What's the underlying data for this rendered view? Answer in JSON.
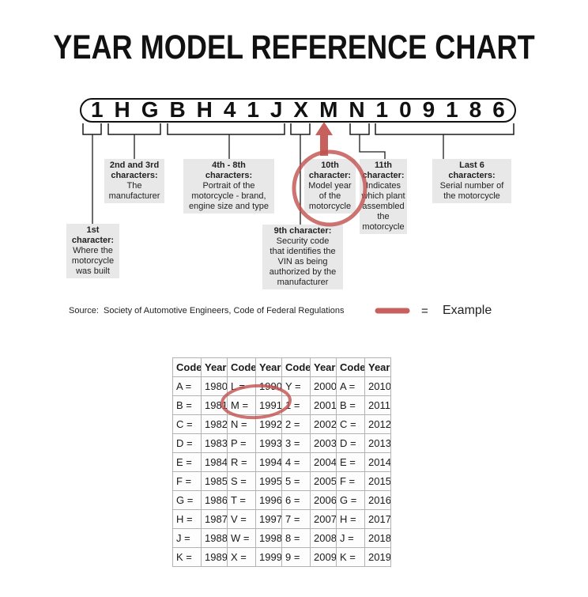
{
  "title": "YEAR MODEL REFERENCE CHART",
  "vin": {
    "characters": [
      "1",
      "H",
      "G",
      "B",
      "H",
      "4",
      "1",
      "J",
      "X",
      "M",
      "N",
      "1",
      "0",
      "9",
      "1",
      "8",
      "6"
    ]
  },
  "callouts": [
    {
      "id": "first",
      "head": "1st\ncharacter:",
      "body": "Where the\nmotorcycle\nwas built"
    },
    {
      "id": "second-third",
      "head": "2nd and 3rd\ncharacters:",
      "body": "The\nmanufacturer"
    },
    {
      "id": "fourth-eighth",
      "head": "4th - 8th\ncharacters:",
      "body": "Portrait of the\nmotorcycle - brand,\nengine size and type"
    },
    {
      "id": "ninth",
      "head": "9th character:",
      "body": "Security code\nthat identifies the\nVIN as being\nauthorized by the\nmanufacturer"
    },
    {
      "id": "tenth",
      "head": "10th\ncharacter:",
      "body": "Model year\nof the\nmotorcycle"
    },
    {
      "id": "eleventh",
      "head": "11th\ncharacter:",
      "body": "Indicates\nwhich plant\nassembled\nthe\nmotorcycle"
    },
    {
      "id": "last-six",
      "head": "Last 6\ncharacters:",
      "body": "Serial number of\nthe motorcycle"
    }
  ],
  "source_line": "Source:  Society of Automotive Engineers, Code of Federal Regulations",
  "legend": {
    "equals_sign": "=",
    "label": "Example"
  },
  "annotations": {
    "circled_vin_character": "M",
    "circled_callout": "10th character: Model year of the motorcycle",
    "circled_table_value": "M = 1991"
  },
  "colors": {
    "accent_red": "#c0504d",
    "label_bg": "#e8e8e8",
    "line_black": "#1c1c1c"
  },
  "table": {
    "headers": [
      "Code",
      "Year",
      "Code",
      "Year",
      "Code",
      "Year",
      "Code",
      "Year"
    ],
    "rows": [
      [
        "A =",
        "1980",
        "L =",
        "1990",
        "Y =",
        "2000",
        "A =",
        "2010"
      ],
      [
        "B =",
        "1981",
        "M =",
        "1991",
        "1 =",
        "2001",
        "B =",
        "2011"
      ],
      [
        "C =",
        "1982",
        "N =",
        "1992",
        "2 =",
        "2002",
        "C =",
        "2012"
      ],
      [
        "D =",
        "1983",
        "P =",
        "1993",
        "3 =",
        "2003",
        "D =",
        "2013"
      ],
      [
        "E =",
        "1984",
        "R =",
        "1994",
        "4 =",
        "2004",
        "E =",
        "2014"
      ],
      [
        "F =",
        "1985",
        "S =",
        "1995",
        "5 =",
        "2005",
        "F =",
        "2015"
      ],
      [
        "G =",
        "1986",
        "T =",
        "1996",
        "6 =",
        "2006",
        "G =",
        "2016"
      ],
      [
        "H =",
        "1987",
        "V =",
        "1997",
        "7 =",
        "2007",
        "H =",
        "2017"
      ],
      [
        "J =",
        "1988",
        "W =",
        "1998",
        "8 =",
        "2008",
        "J =",
        "2018"
      ],
      [
        "K =",
        "1989",
        "X =",
        "1999",
        "9 =",
        "2009",
        "K =",
        "2019"
      ]
    ]
  }
}
